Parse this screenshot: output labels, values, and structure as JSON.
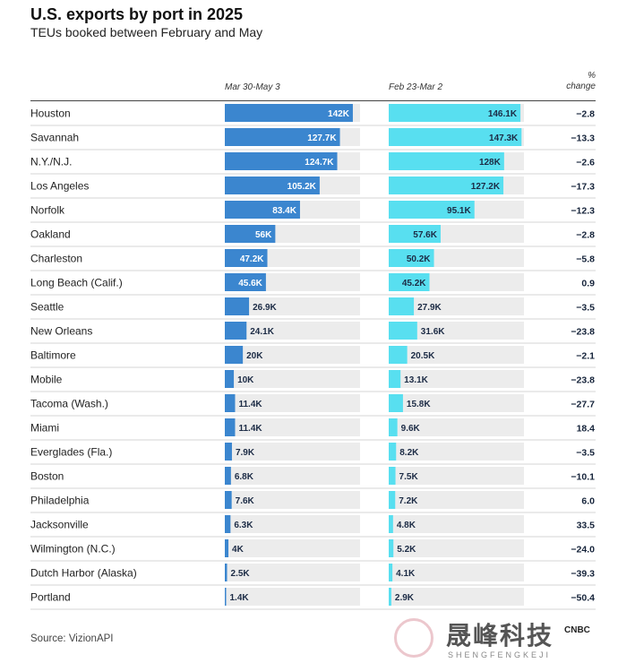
{
  "chart_data": {
    "type": "bar",
    "title": "U.S. exports by port in 2025",
    "subtitle": "TEUs booked between February and May",
    "column_headers": {
      "period_a": "Mar 30-May 3",
      "period_b": "Feb 23-Mar 2",
      "change": [
        "%",
        "change"
      ]
    },
    "xlim": [
      0,
      150
    ],
    "colors": {
      "period_a": "#3b86cf",
      "period_b": "#58dff0",
      "track": "#ececec",
      "label_inside": "#ffffff",
      "label_outside": "#1c2b45"
    },
    "categories": [
      "Houston",
      "Savannah",
      "N.Y./N.J.",
      "Los Angeles",
      "Norfolk",
      "Oakland",
      "Charleston",
      "Long Beach (Calif.)",
      "Seattle",
      "New Orleans",
      "Baltimore",
      "Mobile",
      "Tacoma (Wash.)",
      "Miami",
      "Everglades (Fla.)",
      "Boston",
      "Philadelphia",
      "Jacksonville",
      "Wilmington (N.C.)",
      "Dutch Harbor (Alaska)",
      "Portland"
    ],
    "series": [
      {
        "name": "Mar 30-May 3",
        "values": [
          142,
          127.7,
          124.7,
          105.2,
          83.4,
          56,
          47.2,
          45.6,
          26.9,
          24.1,
          20,
          10,
          11.4,
          11.4,
          7.9,
          6.8,
          7.6,
          6.3,
          4,
          2.5,
          1.4
        ],
        "labels": [
          "142K",
          "127.7K",
          "124.7K",
          "105.2K",
          "83.4K",
          "56K",
          "47.2K",
          "45.6K",
          "26.9K",
          "24.1K",
          "20K",
          "10K",
          "11.4K",
          "11.4K",
          "7.9K",
          "6.8K",
          "7.6K",
          "6.3K",
          "4K",
          "2.5K",
          "1.4K"
        ]
      },
      {
        "name": "Feb 23-Mar 2",
        "values": [
          146.1,
          147.3,
          128,
          127.2,
          95.1,
          57.6,
          50.2,
          45.2,
          27.9,
          31.6,
          20.5,
          13.1,
          15.8,
          9.6,
          8.2,
          7.5,
          7.2,
          4.8,
          5.2,
          4.1,
          2.9
        ],
        "labels": [
          "146.1K",
          "147.3K",
          "128K",
          "127.2K",
          "95.1K",
          "57.6K",
          "50.2K",
          "45.2K",
          "27.9K",
          "31.6K",
          "20.5K",
          "13.1K",
          "15.8K",
          "9.6K",
          "8.2K",
          "7.5K",
          "7.2K",
          "4.8K",
          "5.2K",
          "4.1K",
          "2.9K"
        ]
      }
    ],
    "pct_change": [
      "−2.8",
      "−13.3",
      "−2.6",
      "−17.3",
      "−12.3",
      "−2.8",
      "−5.8",
      "0.9",
      "−3.5",
      "−23.8",
      "−2.1",
      "−23.8",
      "−27.7",
      "18.4",
      "−3.5",
      "−10.1",
      "6.0",
      "33.5",
      "−24.0",
      "−39.3",
      "−50.4"
    ],
    "source": "Source: VizionAPI"
  },
  "watermark": {
    "text": "晟峰科技",
    "subtext": "SHENGFENGKEJI",
    "logo": "CNBC"
  }
}
